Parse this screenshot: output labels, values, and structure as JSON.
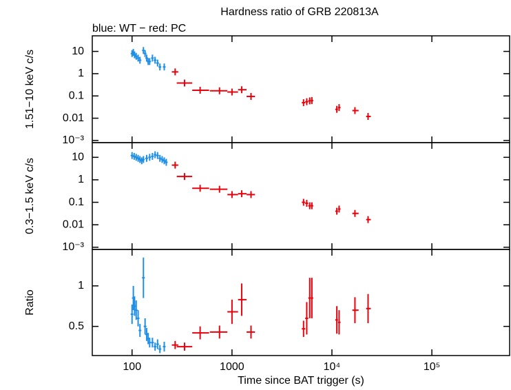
{
  "chart_data": [
    {
      "type": "scatter",
      "title": "Hardness ratio of GRB 220813A",
      "subtitle": "blue: WT − red: PC",
      "ylabel": "1.51−10 keV c/s",
      "log_x": true,
      "log_y": true,
      "xlim": [
        40,
        600000
      ],
      "ylim": [
        0.0008,
        50
      ],
      "yticks": [
        10,
        1,
        0.1,
        0.01,
        {
          "value": 0.001,
          "label": "10⁻³"
        }
      ],
      "series": [
        {
          "name": "WT",
          "color": "#1f8fe6",
          "x": [
            100,
            103,
            106,
            110,
            115,
            120,
            130,
            135,
            140,
            145,
            150,
            160,
            170,
            180,
            190,
            210
          ],
          "values": [
            8,
            9,
            7,
            6,
            5,
            4,
            11,
            8,
            5,
            3.5,
            3.5,
            5,
            4,
            3,
            2,
            2
          ]
        },
        {
          "name": "PC",
          "color": "#e8000b",
          "x": [
            270,
            335,
            480,
            750,
            1000,
            1250,
            1550,
            5200,
            5600,
            6000,
            6300,
            11200,
            11800,
            17000,
            23000
          ],
          "x_lo": [
            250,
            280,
            400,
            600,
            900,
            1150,
            1400,
            5000,
            5400,
            5800,
            6150,
            10800,
            11500,
            16000,
            22000
          ],
          "x_hi": [
            290,
            400,
            590,
            900,
            1150,
            1400,
            1700,
            5400,
            5800,
            6150,
            6500,
            11500,
            12200,
            18500,
            24500
          ],
          "values": [
            1.2,
            0.38,
            0.18,
            0.17,
            0.15,
            0.19,
            0.095,
            0.05,
            0.055,
            0.06,
            0.062,
            0.025,
            0.03,
            0.022,
            0.012
          ]
        }
      ]
    },
    {
      "type": "scatter",
      "ylabel": "0.3−1.5 keV c/s",
      "log_x": true,
      "log_y": true,
      "xlim": [
        40,
        600000
      ],
      "ylim": [
        0.0008,
        45
      ],
      "yticks": [
        10,
        1,
        0.1,
        0.01,
        {
          "value": 0.001,
          "label": "10⁻³"
        }
      ],
      "series": [
        {
          "name": "WT",
          "color": "#1f8fe6",
          "x": [
            100,
            105,
            110,
            115,
            120,
            125,
            130,
            140,
            150,
            160,
            170,
            180,
            190,
            200,
            210,
            220
          ],
          "values": [
            12,
            11,
            10,
            9,
            8,
            7,
            8,
            9,
            10,
            11,
            13,
            12,
            9,
            8,
            7,
            6
          ]
        },
        {
          "name": "PC",
          "color": "#e8000b",
          "x": [
            270,
            335,
            480,
            750,
            1000,
            1250,
            1550,
            5200,
            5600,
            6000,
            6300,
            11200,
            11800,
            17000,
            23000
          ],
          "x_lo": [
            250,
            280,
            400,
            600,
            900,
            1150,
            1400,
            5000,
            5400,
            5800,
            6150,
            10800,
            11500,
            16000,
            22000
          ],
          "x_hi": [
            290,
            400,
            590,
            900,
            1150,
            1400,
            1700,
            5400,
            5800,
            6150,
            6500,
            11500,
            12200,
            18500,
            24500
          ],
          "values": [
            4.5,
            1.4,
            0.42,
            0.38,
            0.22,
            0.24,
            0.22,
            0.1,
            0.09,
            0.07,
            0.07,
            0.04,
            0.05,
            0.032,
            0.017
          ]
        }
      ]
    },
    {
      "type": "scatter",
      "ylabel": "Ratio",
      "xlabel": "Time since BAT trigger (s)",
      "log_x": true,
      "log_y": false,
      "xlim": [
        40,
        600000
      ],
      "ylim": [
        0.14,
        1.45
      ],
      "yticks": [
        0.5,
        1
      ],
      "xticks": [
        100,
        1000,
        {
          "value": 10000,
          "label": "10⁴"
        },
        {
          "value": 100000,
          "label": "10⁵"
        }
      ],
      "series": [
        {
          "name": "WT",
          "color": "#1f8fe6",
          "x": [
            100,
            103,
            106,
            110,
            115,
            120,
            130,
            135,
            140,
            145,
            150,
            160,
            170,
            180,
            190,
            210
          ],
          "values": [
            0.65,
            0.85,
            0.75,
            0.7,
            0.6,
            0.45,
            1.1,
            0.5,
            0.4,
            0.35,
            0.3,
            0.3,
            0.25,
            0.28,
            0.22,
            0.25
          ],
          "errors": [
            0.12,
            0.15,
            0.12,
            0.12,
            0.1,
            0.08,
            0.25,
            0.1,
            0.08,
            0.07,
            0.06,
            0.06,
            0.05,
            0.06,
            0.05,
            0.06
          ]
        },
        {
          "name": "PC",
          "color": "#e8000b",
          "x": [
            270,
            335,
            480,
            750,
            1000,
            1250,
            1550,
            5200,
            5600,
            6000,
            6300,
            11200,
            11800,
            17000,
            23000
          ],
          "x_lo": [
            250,
            280,
            400,
            600,
            900,
            1150,
            1400,
            5000,
            5400,
            5800,
            6150,
            10800,
            11500,
            16000,
            22000
          ],
          "x_hi": [
            290,
            400,
            590,
            900,
            1150,
            1400,
            1700,
            5400,
            5800,
            6150,
            6500,
            11500,
            12200,
            18500,
            24500
          ],
          "values": [
            0.27,
            0.25,
            0.42,
            0.43,
            0.68,
            0.83,
            0.43,
            0.47,
            0.6,
            0.85,
            0.85,
            0.58,
            0.55,
            0.7,
            0.72
          ],
          "errors": [
            0.05,
            0.05,
            0.08,
            0.08,
            0.15,
            0.2,
            0.08,
            0.1,
            0.2,
            0.25,
            0.25,
            0.17,
            0.15,
            0.16,
            0.18
          ]
        }
      ]
    }
  ]
}
